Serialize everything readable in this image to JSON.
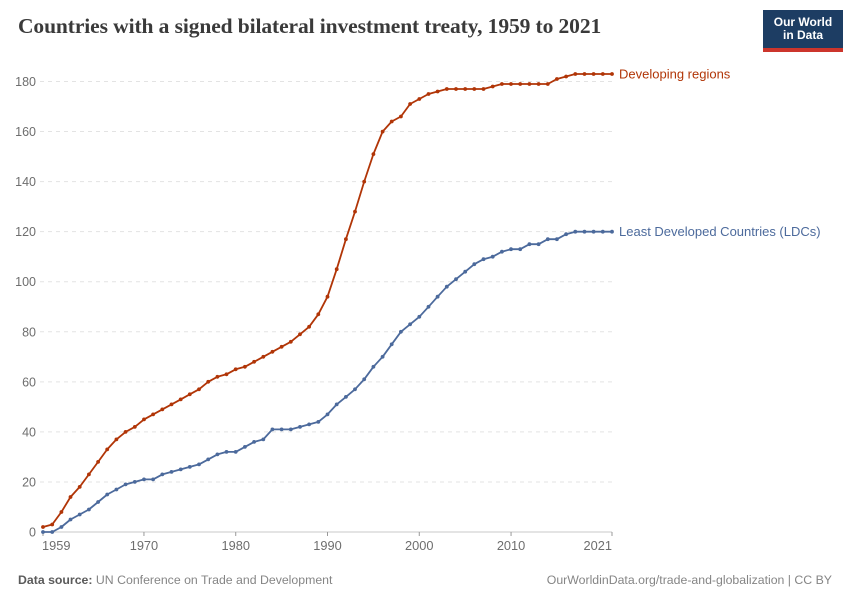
{
  "header": {
    "title": "Countries with a signed bilateral investment treaty, 1959 to 2021",
    "logo": {
      "line1": "Our World",
      "line2": "in Data",
      "bg_color": "#1d3d63",
      "accent_color": "#cc352c"
    }
  },
  "chart_data": {
    "type": "line",
    "title": "Countries with a signed bilateral investment treaty, 1959 to 2021",
    "x_start": 1959,
    "x_end": 2021,
    "xticks": [
      1959,
      1970,
      1980,
      1990,
      2000,
      2010,
      2021
    ],
    "ylim": [
      0,
      180
    ],
    "yticks": [
      0,
      20,
      40,
      60,
      80,
      100,
      120,
      140,
      160,
      180
    ],
    "grid": "horizontal-dashed",
    "grid_color": "#e3e3e3",
    "axis_color": "#c8c8c8",
    "tick_color": "#999999",
    "tick_label_color": "#6e6e6e",
    "legend_position": "end-of-line",
    "series": [
      {
        "name": "Developing regions",
        "label": "Developing regions",
        "color": "#b13507",
        "values": [
          2,
          3,
          8,
          14,
          18,
          23,
          28,
          33,
          37,
          40,
          42,
          45,
          47,
          49,
          51,
          53,
          55,
          57,
          60,
          62,
          63,
          65,
          66,
          68,
          70,
          72,
          74,
          76,
          79,
          82,
          87,
          94,
          105,
          117,
          128,
          140,
          151,
          160,
          164,
          166,
          171,
          173,
          175,
          176,
          177,
          177,
          177,
          177,
          177,
          178,
          179,
          179,
          179,
          179,
          179,
          179,
          181,
          182,
          183,
          183,
          183,
          183,
          183
        ]
      },
      {
        "name": "Least Developed Countries (LDCs)",
        "label": "Least Developed Countries (LDCs)",
        "color": "#4c6a9c",
        "values": [
          0,
          0,
          2,
          5,
          7,
          9,
          12,
          15,
          17,
          19,
          20,
          21,
          21,
          23,
          24,
          25,
          26,
          27,
          29,
          31,
          32,
          32,
          34,
          36,
          37,
          41,
          41,
          41,
          42,
          43,
          44,
          47,
          51,
          54,
          57,
          61,
          66,
          70,
          75,
          80,
          83,
          86,
          90,
          94,
          98,
          101,
          104,
          107,
          109,
          110,
          112,
          113,
          113,
          115,
          115,
          117,
          117,
          119,
          120,
          120,
          120,
          120,
          120
        ]
      }
    ]
  },
  "footer": {
    "source_label": "Data source:",
    "source_text": " UN Conference on Trade and Development",
    "credit": "OurWorldinData.org/trade-and-globalization | CC BY"
  }
}
